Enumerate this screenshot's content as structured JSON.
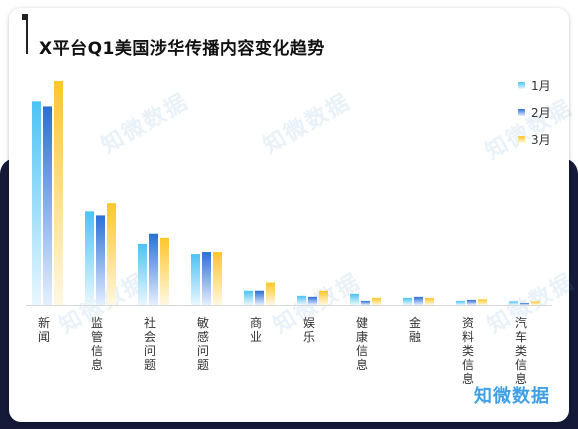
{
  "title": "X平台Q1美国涉华传播内容变化趋势",
  "brand": "知微数据",
  "watermark": "知微数据",
  "colors": {
    "series": [
      {
        "top": "#4cc3f5",
        "bottom": "#eaf7fe"
      },
      {
        "top": "#2a6fd6",
        "bottom": "#e6efff"
      },
      {
        "top": "#ffc52a",
        "bottom": "#fff8e3"
      }
    ],
    "background_band": "#141a38",
    "brand": "#3fa0e6"
  },
  "chart_data": {
    "type": "bar",
    "categories": [
      "新闻",
      "监管信息",
      "社会问题",
      "敏感问题",
      "商业",
      "娱乐",
      "健康信息",
      "金融",
      "资料类信息",
      "汽车类信息"
    ],
    "series": [
      {
        "name": "1月",
        "values": [
          100,
          46,
          30,
          25,
          7,
          4.5,
          5.5,
          3.5,
          2,
          1.8
        ]
      },
      {
        "name": "2月",
        "values": [
          97.5,
          44,
          35,
          26,
          7,
          4,
          2,
          4,
          2.5,
          1
        ]
      },
      {
        "name": "3月",
        "values": [
          110,
          50,
          33,
          26,
          11,
          7,
          3.5,
          3.5,
          2.8,
          1.8
        ]
      }
    ],
    "ylim": [
      0,
      110
    ],
    "grid": false,
    "legend": "top-right"
  }
}
